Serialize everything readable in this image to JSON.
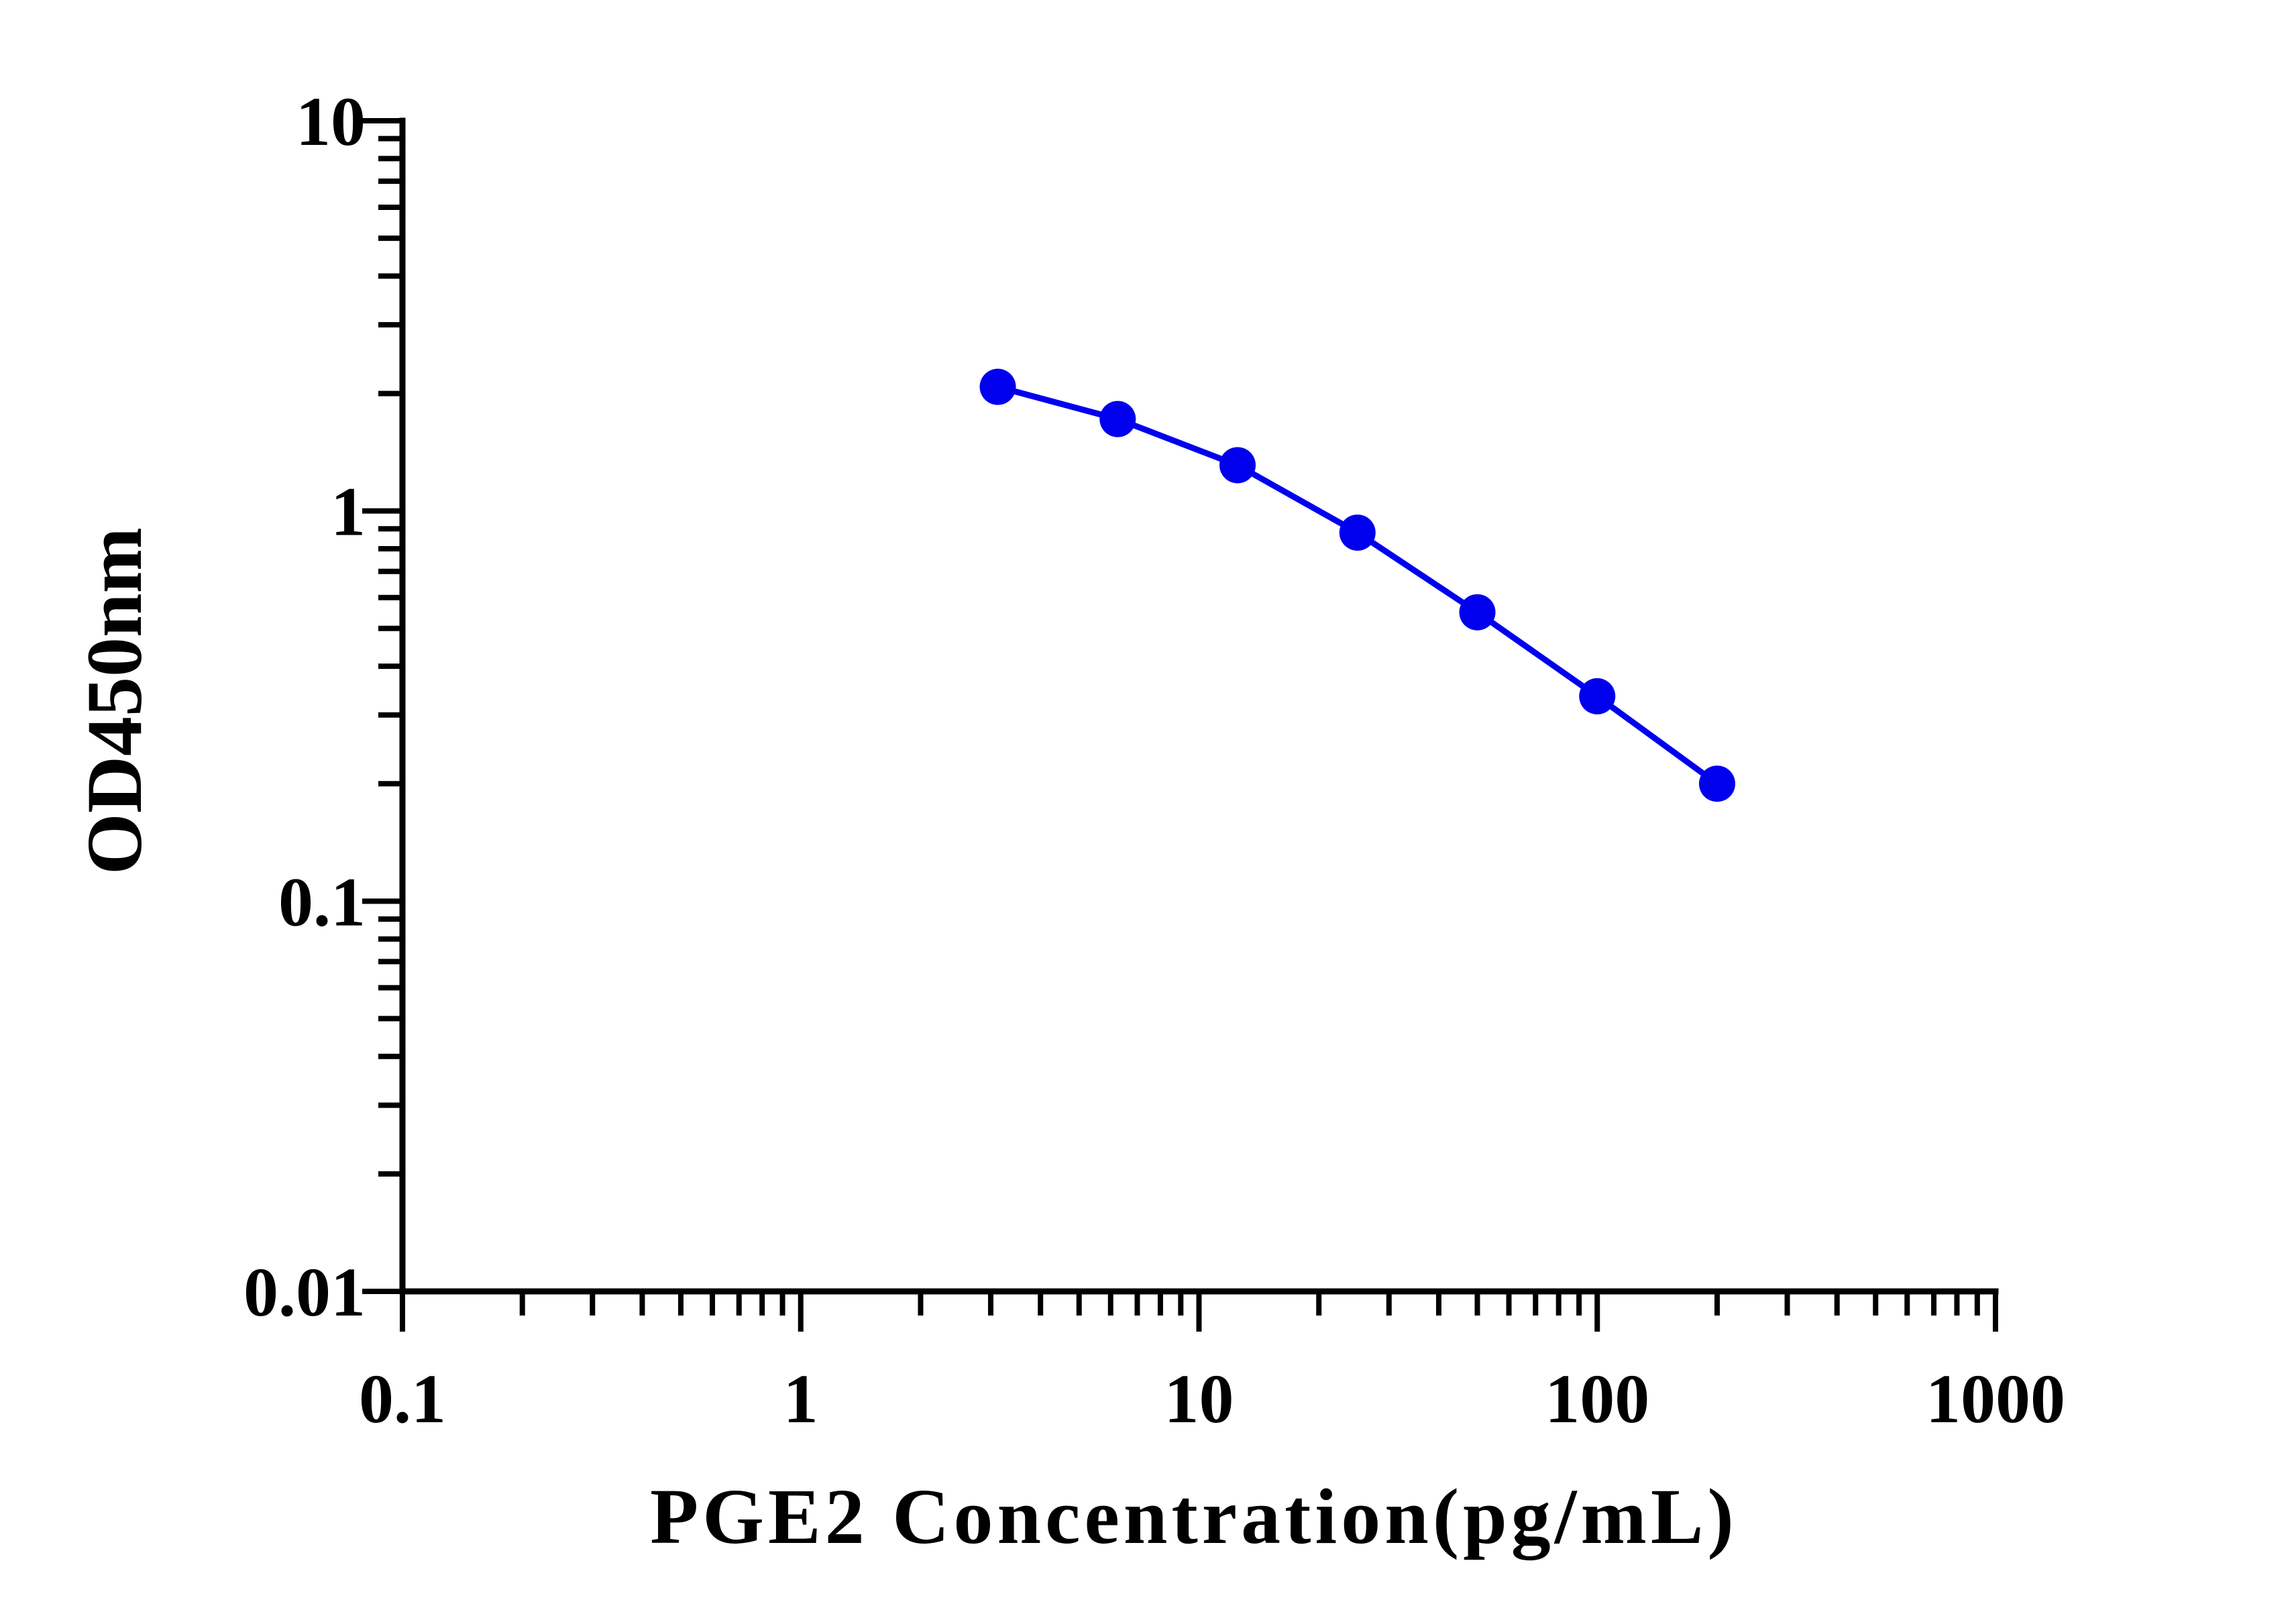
{
  "chart_data": {
    "type": "line",
    "title": "",
    "xlabel": "PGE2 Concentration(pg/mL)",
    "ylabel": "OD450nm",
    "x_scale": "log",
    "y_scale": "log",
    "xlim": [
      0.1,
      1000
    ],
    "ylim": [
      0.01,
      10
    ],
    "x_ticks": [
      "0.1",
      "1",
      "10",
      "100",
      "1000"
    ],
    "y_ticks": [
      "0.01",
      "0.1",
      "1",
      "10"
    ],
    "grid": false,
    "legend": "none",
    "series": [
      {
        "color": "#0000ee",
        "marker": "circle",
        "points": [
          {
            "x": 3.125,
            "y": 2.08
          },
          {
            "x": 6.25,
            "y": 1.72
          },
          {
            "x": 12.5,
            "y": 1.31
          },
          {
            "x": 25,
            "y": 0.88
          },
          {
            "x": 50,
            "y": 0.55
          },
          {
            "x": 100,
            "y": 0.335
          },
          {
            "x": 200,
            "y": 0.2
          }
        ]
      }
    ]
  }
}
